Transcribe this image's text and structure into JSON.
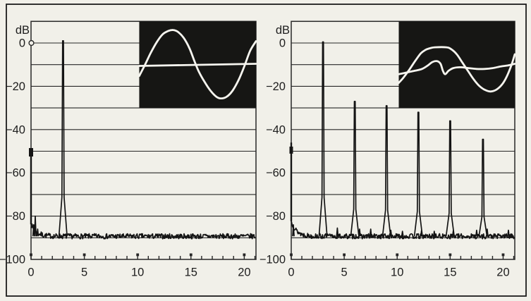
{
  "figure": {
    "paper_color": "#f1f0e9",
    "border_color": "#1c1c1c",
    "grid_color": "#272727",
    "trace_color": "#141414",
    "inset_background": "#161614",
    "inset_trace_color": "#f6f5ef",
    "unit": "dB"
  },
  "chart_data": [
    {
      "type": "line",
      "panel": "left",
      "ylabel": "dB",
      "xlabel": "",
      "xlim": [
        0,
        21.1
      ],
      "ylim": [
        -100,
        10
      ],
      "x_tick_step": 1,
      "x_ticks_labeled": [
        0,
        5,
        10,
        15,
        20
      ],
      "y_grid_step": 10,
      "y_ticks_labeled": [
        0,
        -20,
        -40,
        -60,
        -80,
        -100
      ],
      "noise_floor_db": -89.3,
      "noise_amplitude_db": 2.4,
      "noise_rise_near_zero_db": 5.5,
      "noise_seed": 7,
      "zero_db_axis_marker": true,
      "dc_spike": {
        "x": 0,
        "top_db": -49,
        "blob_center_db": -50.5,
        "blob_size_px": 6
      },
      "peaks": [
        {
          "x": 3,
          "top_db": 1
        }
      ],
      "minor_spikes": [
        {
          "x": 0.25,
          "top_db": -84
        },
        {
          "x": 0.4,
          "top_db": -80
        },
        {
          "x": 0.62,
          "top_db": -86
        }
      ],
      "inset": {
        "x_from_data": 10.15,
        "db_top": 10,
        "db_bottom": -30,
        "traces": [
          {
            "name": "sine-wave-trace",
            "smooth": true,
            "points": [
              [
                0,
                63
              ],
              [
                5,
                50
              ],
              [
                10,
                36
              ],
              [
                15,
                24
              ],
              [
                20,
                15
              ],
              [
                25,
                11
              ],
              [
                29,
                10
              ],
              [
                33,
                12
              ],
              [
                38,
                19
              ],
              [
                43,
                31
              ],
              [
                47,
                45
              ],
              [
                51,
                58
              ],
              [
                56,
                70
              ],
              [
                61,
                80
              ],
              [
                66,
                87
              ],
              [
                70,
                89
              ],
              [
                75,
                87
              ],
              [
                80,
                80
              ],
              [
                85,
                68
              ],
              [
                90,
                52
              ],
              [
                95,
                34
              ],
              [
                100,
                23
              ]
            ]
          },
          {
            "name": "error-line-trace",
            "smooth": false,
            "points": [
              [
                0,
                51.5
              ],
              [
                100,
                49
              ]
            ]
          }
        ]
      }
    },
    {
      "type": "line",
      "panel": "right",
      "ylabel": "dB",
      "xlabel": "",
      "xlim": [
        0,
        21.1
      ],
      "ylim": [
        -100,
        10
      ],
      "x_tick_step": 1,
      "x_ticks_labeled": [
        0,
        5,
        10,
        15,
        20
      ],
      "y_grid_step": 10,
      "y_ticks_labeled": [
        0,
        -20,
        -40,
        -60,
        -80,
        -100
      ],
      "noise_floor_db": -89.3,
      "noise_amplitude_db": 2.4,
      "noise_rise_near_zero_db": 7,
      "noise_seed": 13,
      "zero_db_axis_marker": false,
      "dc_spike": {
        "x": 0,
        "top_db": -46,
        "blob_center_db": -49.5,
        "blob_size_px": 5
      },
      "peaks": [
        {
          "x": 3,
          "top_db": 0.5
        },
        {
          "x": 6,
          "top_db": -27
        },
        {
          "x": 9,
          "top_db": -29
        },
        {
          "x": 12,
          "top_db": -32
        },
        {
          "x": 15,
          "top_db": -36
        },
        {
          "x": 18.1,
          "top_db": -44.5
        }
      ],
      "minor_spikes": [
        {
          "x": 0.2,
          "top_db": -84
        },
        {
          "x": 4.35,
          "top_db": -85.5
        },
        {
          "x": 6.45,
          "top_db": -86
        },
        {
          "x": 7.5,
          "top_db": -86
        },
        {
          "x": 9.4,
          "top_db": -86.5
        },
        {
          "x": 10.5,
          "top_db": -87
        },
        {
          "x": 12.3,
          "top_db": -86.5
        },
        {
          "x": 13.5,
          "top_db": -87
        },
        {
          "x": 15.3,
          "top_db": -86.5
        },
        {
          "x": 17.5,
          "top_db": -86.5
        },
        {
          "x": 18.5,
          "top_db": -86
        },
        {
          "x": 20.5,
          "top_db": -86.5
        }
      ],
      "inset": {
        "x_from_data": 10.15,
        "db_top": 10,
        "db_bottom": -30,
        "traces": [
          {
            "name": "clipped-sine-wave-trace",
            "smooth": true,
            "points": [
              [
                0,
                71
              ],
              [
                4,
                65
              ],
              [
                9,
                56
              ],
              [
                14,
                46
              ],
              [
                19,
                37
              ],
              [
                23,
                33
              ],
              [
                27,
                31
              ],
              [
                31,
                30
              ],
              [
                41,
                30
              ],
              [
                45,
                32
              ],
              [
                50,
                38
              ],
              [
                55,
                48
              ],
              [
                60,
                58
              ],
              [
                64,
                66
              ],
              [
                69,
                74
              ],
              [
                74,
                79
              ],
              [
                79,
                81
              ],
              [
                84,
                79
              ],
              [
                89,
                73
              ],
              [
                93,
                64
              ],
              [
                97,
                51
              ],
              [
                100,
                38
              ]
            ]
          },
          {
            "name": "error-signal-trace",
            "smooth": true,
            "points": [
              [
                0,
                61
              ],
              [
                7,
                59
              ],
              [
                14,
                57
              ],
              [
                20,
                55
              ],
              [
                25,
                51
              ],
              [
                29,
                47
              ],
              [
                33,
                46
              ],
              [
                36,
                49
              ],
              [
                38,
                57
              ],
              [
                40,
                61
              ],
              [
                43,
                57
              ],
              [
                47,
                54
              ],
              [
                53,
                53
              ],
              [
                60,
                54
              ],
              [
                67,
                55
              ],
              [
                74,
                55
              ],
              [
                81,
                54
              ],
              [
                88,
                52
              ],
              [
                94,
                51
              ],
              [
                100,
                49
              ]
            ]
          }
        ]
      }
    }
  ]
}
